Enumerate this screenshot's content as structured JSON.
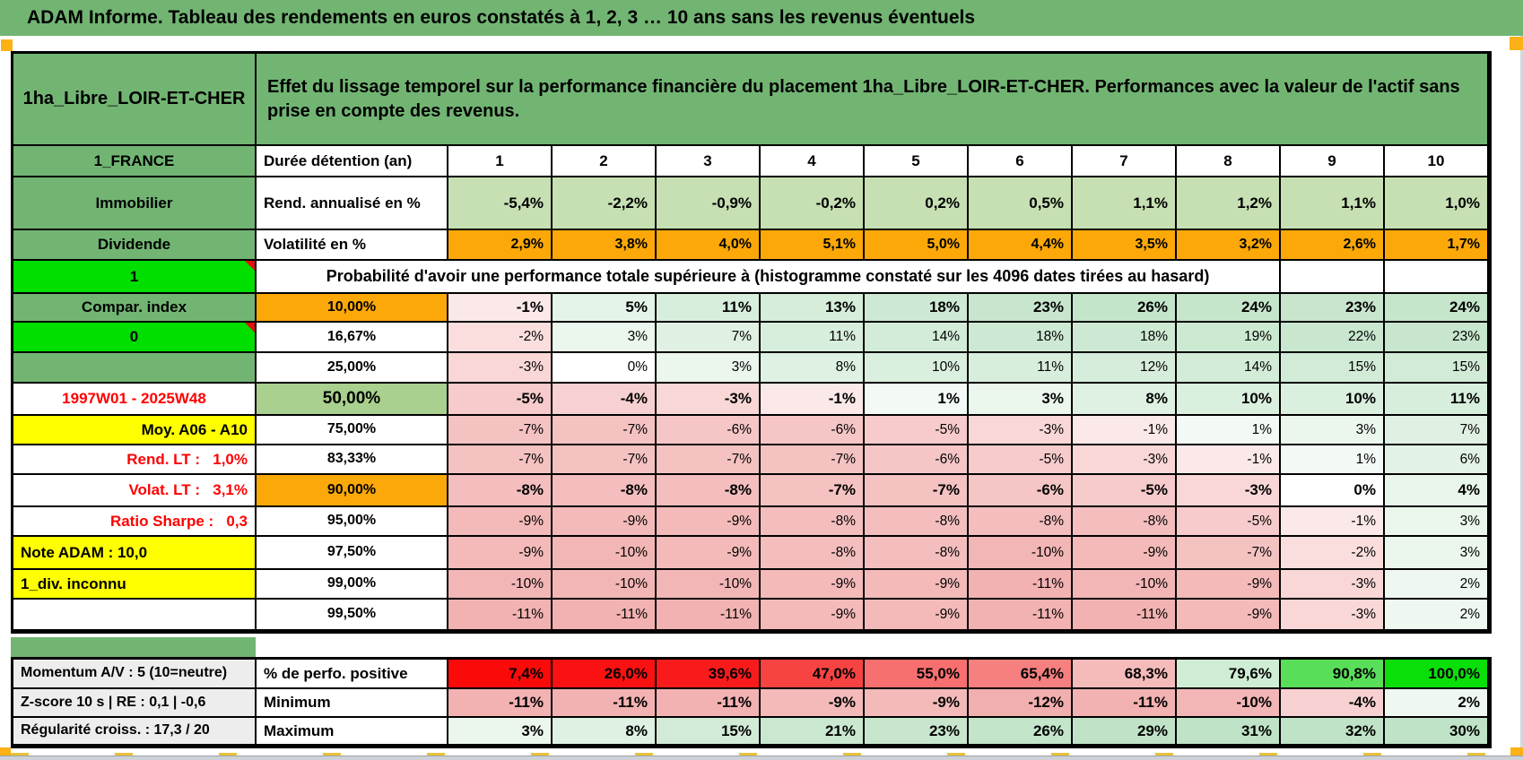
{
  "banner": {
    "title": "ADAM Informe. Tableau des rendements en euros constatés à 1, 2, 3 … 10 ans sans les revenus éventuels"
  },
  "header": {
    "asset": "1ha_Libre_LOIR-ET-CHER",
    "description": "Effet du lissage temporel sur la performance financière du placement 1ha_Libre_LOIR-ET-CHER. Performances avec la valeur de l'actif sans prise en compte des revenus."
  },
  "colors": {
    "banner_green": "#72B573",
    "cell_green": "#72B573",
    "bright_green": "#00DF00",
    "light_green": "#C6E0B4",
    "mid_green": "#A9D08E",
    "orange": "#FBA808",
    "yellow": "#FFFF00",
    "red_text": "#FF0000",
    "gray_label": "#EDEDED",
    "scale_neg": "#F2AFAF",
    "scale_pos": "#BFE3C6",
    "marker_red": "#E01010",
    "page_break_orange": "#FCB116"
  },
  "main_table": {
    "duration": {
      "label": "1_FRANCE",
      "header": "Durée détention (an)",
      "values": [
        "1",
        "2",
        "3",
        "4",
        "5",
        "6",
        "7",
        "8",
        "9",
        "10"
      ]
    },
    "returns": {
      "label": "Immobilier",
      "header": "Rend. annualisé en %",
      "values": [
        "-5,4%",
        "-2,2%",
        "-0,9%",
        "-0,2%",
        "0,2%",
        "0,5%",
        "1,1%",
        "1,2%",
        "1,1%",
        "1,0%"
      ]
    },
    "volatility": {
      "label": "Dividende",
      "header": "Volatilité en %",
      "values": [
        "2,9%",
        "3,8%",
        "4,0%",
        "5,1%",
        "5,0%",
        "4,4%",
        "3,5%",
        "3,2%",
        "2,6%",
        "1,7%"
      ]
    },
    "probability": {
      "label": "1",
      "marker": true,
      "banner": "Probabilité d'avoir une performance totale supérieure à (histogramme constaté sur les 4096 dates tirées au hasard)",
      "rows": [
        {
          "label": "Compar. index",
          "label_bg": "#72B573",
          "label_fg": "#000000",
          "label_align": "center",
          "marker": false,
          "threshold": "10,00%",
          "threshold_bg": "#FBA808",
          "big": false,
          "bold": true,
          "values": [
            "-1%",
            "5%",
            "11%",
            "13%",
            "18%",
            "23%",
            "26%",
            "24%",
            "23%",
            "24%"
          ]
        },
        {
          "label": "0",
          "label_bg": "#00DF00",
          "label_fg": "#000000",
          "label_align": "center",
          "marker": true,
          "threshold": "16,67%",
          "threshold_bg": "#FFFFFF",
          "big": false,
          "bold": false,
          "values": [
            "-2%",
            "3%",
            "7%",
            "11%",
            "14%",
            "18%",
            "18%",
            "19%",
            "22%",
            "23%"
          ]
        },
        {
          "label": "",
          "label_bg": "#72B573",
          "label_fg": "#000000",
          "label_align": "center",
          "marker": false,
          "threshold": "25,00%",
          "threshold_bg": "#FFFFFF",
          "big": false,
          "bold": false,
          "values": [
            "-3%",
            "0%",
            "3%",
            "8%",
            "10%",
            "11%",
            "12%",
            "14%",
            "15%",
            "15%"
          ]
        },
        {
          "label": "1997W01 - 2025W48",
          "label_bg": "#FFFFFF",
          "label_fg": "#FF0000",
          "label_align": "center",
          "marker": false,
          "threshold": "50,00%",
          "threshold_bg": "#A9D08E",
          "big": true,
          "bold": true,
          "values": [
            "-5%",
            "-4%",
            "-3%",
            "-1%",
            "1%",
            "3%",
            "8%",
            "10%",
            "10%",
            "11%"
          ]
        },
        {
          "label": "Moy. A06 - A10",
          "label_bg": "#FFFF00",
          "label_fg": "#000000",
          "label_align": "right",
          "marker": false,
          "threshold": "75,00%",
          "threshold_bg": "#FFFFFF",
          "big": false,
          "bold": false,
          "values": [
            "-7%",
            "-7%",
            "-6%",
            "-6%",
            "-5%",
            "-3%",
            "-1%",
            "1%",
            "3%",
            "7%"
          ]
        },
        {
          "label": "Rend. LT :   1,0%",
          "label_bg": "#FFFFFF",
          "label_fg": "#FF0000",
          "label_align": "right",
          "marker": false,
          "threshold": "83,33%",
          "threshold_bg": "#FFFFFF",
          "big": false,
          "bold": false,
          "values": [
            "-7%",
            "-7%",
            "-7%",
            "-7%",
            "-6%",
            "-5%",
            "-3%",
            "-1%",
            "1%",
            "6%"
          ]
        },
        {
          "label": "Volat. LT :   3,1%",
          "label_bg": "#FFFFFF",
          "label_fg": "#FF0000",
          "label_align": "right",
          "marker": false,
          "threshold": "90,00%",
          "threshold_bg": "#FBA808",
          "big": false,
          "bold": true,
          "values": [
            "-8%",
            "-8%",
            "-8%",
            "-7%",
            "-7%",
            "-6%",
            "-5%",
            "-3%",
            "0%",
            "4%"
          ]
        },
        {
          "label": "Ratio Sharpe :   0,3",
          "label_bg": "#FFFFFF",
          "label_fg": "#FF0000",
          "label_align": "right",
          "marker": false,
          "threshold": "95,00%",
          "threshold_bg": "#FFFFFF",
          "big": false,
          "bold": false,
          "values": [
            "-9%",
            "-9%",
            "-9%",
            "-8%",
            "-8%",
            "-8%",
            "-8%",
            "-5%",
            "-1%",
            "3%"
          ]
        },
        {
          "label": "Note ADAM : 10,0",
          "label_bg": "#FFFF00",
          "label_fg": "#000000",
          "label_align": "left",
          "marker": false,
          "threshold": "97,50%",
          "threshold_bg": "#FFFFFF",
          "big": false,
          "bold": false,
          "values": [
            "-9%",
            "-10%",
            "-9%",
            "-8%",
            "-8%",
            "-10%",
            "-9%",
            "-7%",
            "-2%",
            "3%"
          ]
        },
        {
          "label": "1_div. inconnu",
          "label_bg": "#FFFF00",
          "label_fg": "#000000",
          "label_align": "left",
          "marker": false,
          "threshold": "99,00%",
          "threshold_bg": "#FFFFFF",
          "big": false,
          "bold": false,
          "values": [
            "-10%",
            "-10%",
            "-10%",
            "-9%",
            "-9%",
            "-11%",
            "-10%",
            "-9%",
            "-3%",
            "2%"
          ]
        },
        {
          "label": "",
          "label_bg": "#FFFFFF",
          "label_fg": "#000000",
          "label_align": "center",
          "marker": false,
          "threshold": "99,50%",
          "threshold_bg": "#FFFFFF",
          "big": false,
          "bold": false,
          "values": [
            "-11%",
            "-11%",
            "-11%",
            "-9%",
            "-9%",
            "-11%",
            "-11%",
            "-9%",
            "-3%",
            "2%"
          ]
        }
      ]
    }
  },
  "bottom_table": {
    "rows": [
      {
        "label": "Momentum A/V : 5 (10=neutre)",
        "header": "% de perfo. positive",
        "bold": true,
        "values": [
          "7,4%",
          "26,0%",
          "39,6%",
          "47,0%",
          "55,0%",
          "65,4%",
          "68,3%",
          "79,6%",
          "90,8%",
          "100,0%"
        ],
        "cell_bgs": [
          "#FB0A0A",
          "#FA1111",
          "#F91B1B",
          "#F84343",
          "#F76F6F",
          "#F68080",
          "#F5BBBB",
          "#CFEDD4",
          "#59DE59",
          "#0ADF0A"
        ]
      },
      {
        "label": "Z-score 10 s | RE : 0,1 | -0,6",
        "header": "Minimum",
        "bold": true,
        "values": [
          "-11%",
          "-11%",
          "-11%",
          "-9%",
          "-9%",
          "-12%",
          "-11%",
          "-10%",
          "-4%",
          "2%"
        ]
      },
      {
        "label": "Régularité croiss. : 17,3 / 20",
        "header": "Maximum",
        "bold": true,
        "values": [
          "3%",
          "8%",
          "15%",
          "21%",
          "23%",
          "26%",
          "29%",
          "31%",
          "32%",
          "30%"
        ]
      }
    ]
  }
}
